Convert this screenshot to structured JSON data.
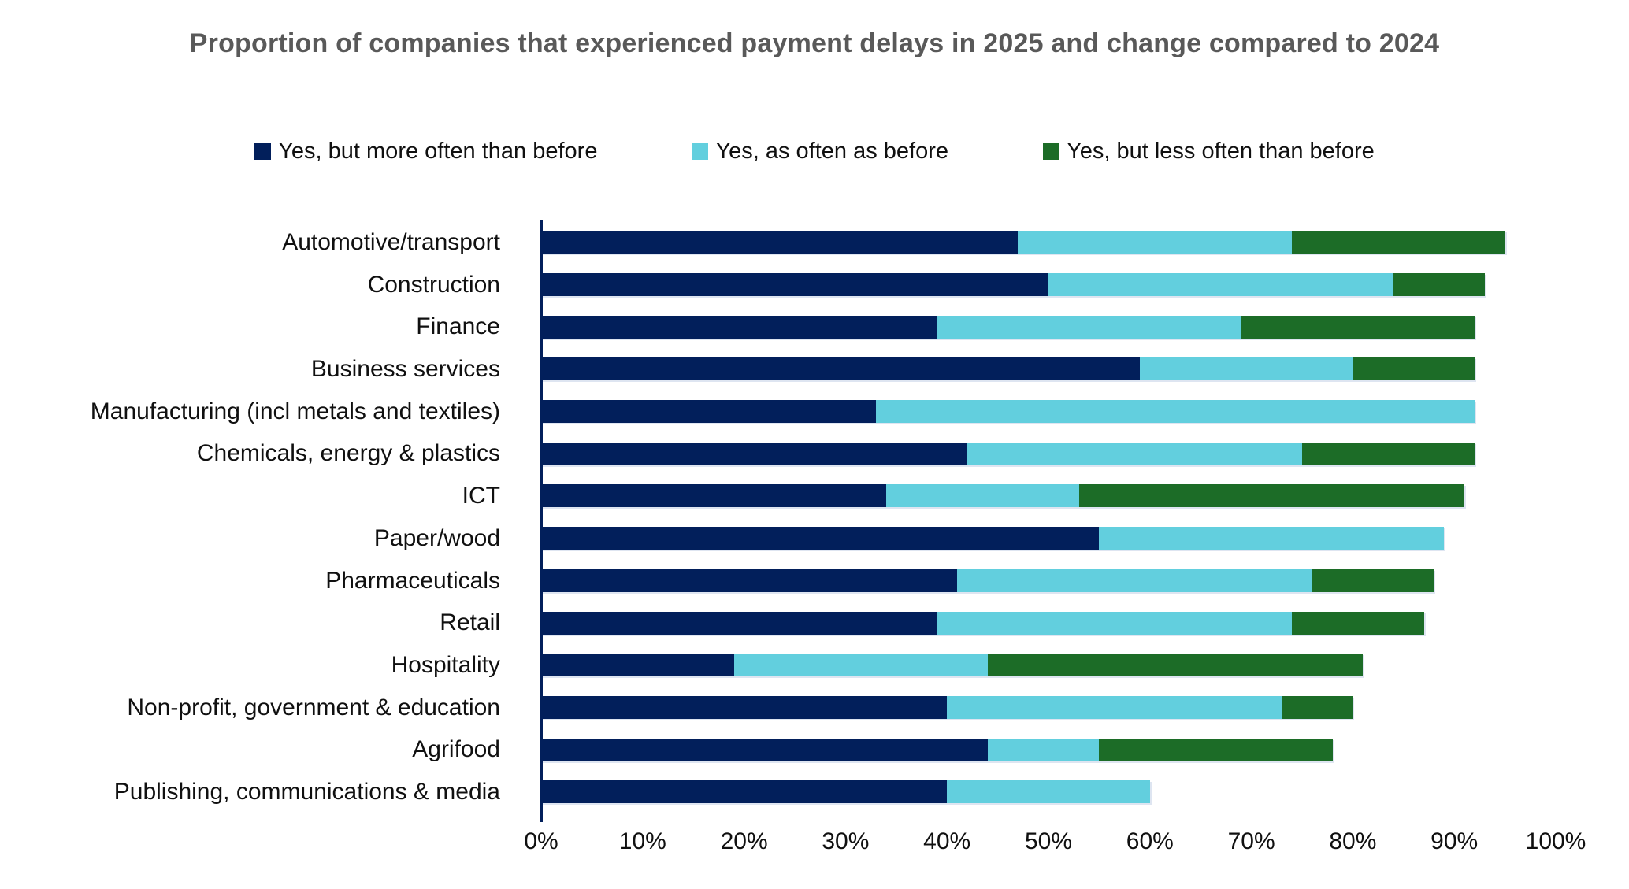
{
  "chart_data": {
    "type": "bar",
    "orientation": "horizontal",
    "stacked": true,
    "title": "Proportion of companies that experienced payment delays in 2025 and change compared to 2024",
    "categories": [
      "Automotive/transport",
      "Construction",
      "Finance",
      "Business services",
      "Manufacturing (incl metals and textiles)",
      "Chemicals, energy & plastics",
      "ICT",
      "Paper/wood",
      "Pharmaceuticals",
      "Retail",
      "Hospitality",
      "Non-profit, government & education",
      "Agrifood",
      "Publishing, communications & media"
    ],
    "series": [
      {
        "name": "Yes, but more often than before",
        "color": "#021F5B",
        "values": [
          47,
          50,
          39,
          59,
          33,
          42,
          34,
          55,
          41,
          39,
          19,
          40,
          44,
          40
        ]
      },
      {
        "name": "Yes, as often as before",
        "color": "#62CFDE",
        "values": [
          27,
          34,
          30,
          21,
          59,
          33,
          19,
          34,
          35,
          35,
          25,
          33,
          11,
          20
        ]
      },
      {
        "name": "Yes, but less often than before",
        "color": "#1C6C27",
        "values": [
          21,
          9,
          23,
          12,
          0,
          17,
          38,
          0,
          12,
          13,
          37,
          7,
          23,
          0
        ]
      }
    ],
    "totals": [
      95,
      93,
      92,
      92,
      92,
      92,
      91,
      89,
      88,
      87,
      81,
      80,
      78,
      60
    ],
    "xlabel": "",
    "ylabel": "",
    "xlim": [
      0,
      100
    ],
    "x_ticks": [
      "0%",
      "10%",
      "20%",
      "30%",
      "40%",
      "50%",
      "60%",
      "70%",
      "80%",
      "90%",
      "100%"
    ],
    "legend_position": "top",
    "grid": false
  },
  "colors": {
    "title_text": "#595959",
    "body_text": "#101010",
    "axis_line": "#021F5B"
  }
}
